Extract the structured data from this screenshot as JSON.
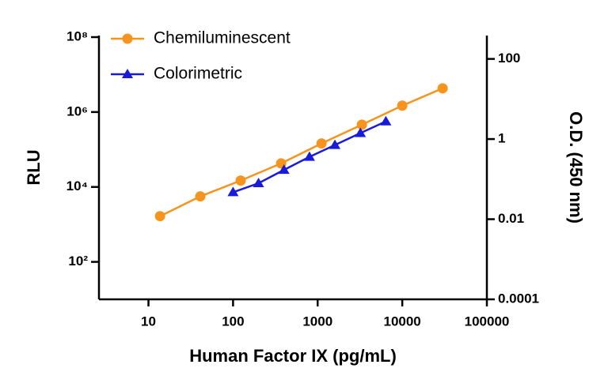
{
  "chart_data": {
    "type": "line",
    "xlabel": "Human Factor IX (pg/mL)",
    "ylabel": "RLU",
    "y2label": "O.D. (450 nm)",
    "log_x": true,
    "log_y": true,
    "log_y2": true,
    "xlim": [
      2.6,
      100000
    ],
    "xticks": [
      10,
      100,
      1000,
      10000,
      100000
    ],
    "ylim": [
      10,
      100000000
    ],
    "yticks": [
      {
        "value": 100,
        "label": "10²"
      },
      {
        "value": 10000,
        "label": "10⁴"
      },
      {
        "value": 1000000,
        "label": "10⁶"
      },
      {
        "value": 100000000,
        "label": "10⁸"
      }
    ],
    "y2lim": [
      0.0001,
      350
    ],
    "y2ticks": [
      0.0001,
      0.01,
      1,
      100
    ],
    "legend": "upper left",
    "series": [
      {
        "name": "Chemiluminescent",
        "color": "#f7941d",
        "marker": "circle",
        "x": [
          13.7,
          41,
          123,
          370,
          1111,
          3333,
          10000,
          30000
        ],
        "values": [
          1660,
          5600,
          14800,
          42600,
          145000,
          460000,
          1480000,
          4300000
        ]
      },
      {
        "name": "Colorimetric",
        "color": "#1a1adb",
        "marker": "triangle",
        "axis": "y2",
        "x": [
          100,
          200,
          400,
          800,
          1600,
          3200,
          6400
        ],
        "values": [
          0.047,
          0.079,
          0.17,
          0.36,
          0.71,
          1.41,
          2.75
        ]
      }
    ]
  }
}
